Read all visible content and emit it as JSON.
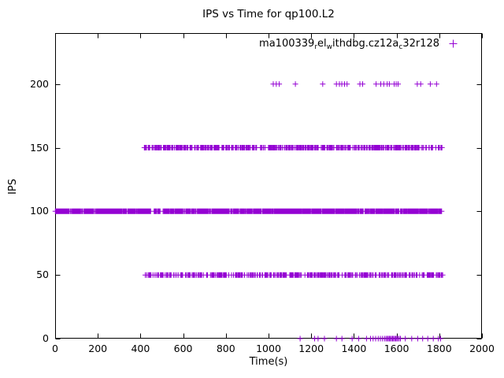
{
  "chart_data": {
    "type": "scatter",
    "title": "IPS vs Time for qp100.L2",
    "xlabel": "Time(s)",
    "ylabel": "IPS",
    "xlim": [
      0,
      2000
    ],
    "ylim": [
      0,
      240
    ],
    "xticks": [
      0,
      200,
      400,
      600,
      800,
      1000,
      1200,
      1400,
      1600,
      1800,
      2000
    ],
    "yticks": [
      0,
      50,
      100,
      150,
      200
    ],
    "grid": false,
    "legend_position": "top-right-inside",
    "marker": "plus",
    "color": "#9400D3",
    "axis_color": "#000000",
    "series": [
      {
        "name": "ma100339_rel_withdbg.cz12a_c32r128",
        "name_parts": [
          {
            "text": "ma100339",
            "sub": false
          },
          {
            "text": "r",
            "sub": true
          },
          {
            "text": "el",
            "sub": false
          },
          {
            "text": "w",
            "sub": true
          },
          {
            "text": "ithdbg.cz12a",
            "sub": false
          },
          {
            "text": "c",
            "sub": true
          },
          {
            "text": "32r128",
            "sub": false
          }
        ],
        "bands": [
          {
            "y": 100,
            "x_start": 0,
            "x_end": 1812,
            "count": 1500,
            "seed": 11,
            "gaps": [
              [
                449,
                463
              ],
              [
                497,
                505
              ]
            ]
          },
          {
            "y": 150,
            "x_start": 416,
            "x_end": 1816,
            "count": 470,
            "seed": 22,
            "gaps": []
          },
          {
            "y": 50,
            "x_start": 416,
            "x_end": 1816,
            "count": 400,
            "seed": 33,
            "gaps": []
          },
          {
            "y": 200,
            "x_points": [
              1022,
              1036,
              1050,
              1126,
              1254,
              1318,
              1332,
              1343,
              1356,
              1368,
              1428,
              1441,
              1504,
              1526,
              1540,
              1556,
              1566,
              1589,
              1598,
              1607,
              1697,
              1713,
              1758,
              1787
            ]
          },
          {
            "y": 0,
            "x_points": [
              1148,
              1216,
              1232,
              1262,
              1318,
              1344,
              1392,
              1422,
              1459,
              1478,
              1490,
              1502,
              1514,
              1524,
              1534,
              1543,
              1550,
              1556,
              1561,
              1566,
              1571,
              1576,
              1581,
              1586,
              1591,
              1596,
              1601,
              1606,
              1612,
              1618,
              1641,
              1671,
              1699,
              1722,
              1746,
              1772,
              1796,
              1806
            ]
          }
        ]
      }
    ]
  }
}
